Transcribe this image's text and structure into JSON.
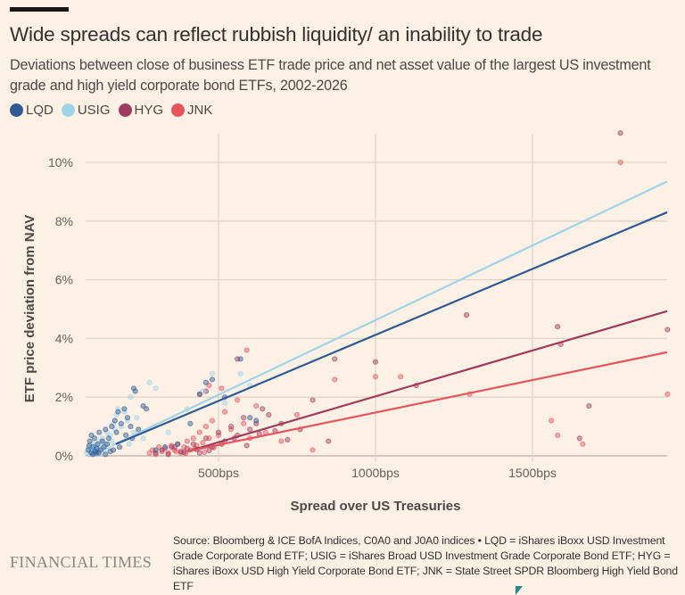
{
  "header": {
    "title": "Wide spreads can reflect rubbish liquidity/ an inability to trade",
    "subtitle": "Deviations between close of business ETF trade price and net asset value of the largest US investment grade and high yield corporate bond ETFs, 2002-2026"
  },
  "legend": [
    {
      "label": "LQD",
      "color": "#2e5b95"
    },
    {
      "label": "USIG",
      "color": "#9fd3e8"
    },
    {
      "label": "HYG",
      "color": "#a23a5e"
    },
    {
      "label": "JNK",
      "color": "#e5555e"
    }
  ],
  "footer": {
    "brand": "FINANCIAL TIMES",
    "source": "Source: Bloomberg & ICE BofA Indices, C0A0 and J0A0 indices • LQD = iShares iBoxx USD Investment Grade Corporate Bond ETF; USIG = iShares Broad USD Investment Grade Corporate Bond ETF; HYG = iShares iBoxx USD High Yield Corporate Bond ETF; JNK = State Street SPDR Bloomberg High Yield Bond ETF"
  },
  "chart_data": {
    "type": "scatter",
    "title": "Wide spreads can reflect rubbish liquidity/ an inability to trade",
    "xlabel": "Spread over US Treasuries",
    "ylabel": "ETF price deviation from NAV",
    "xlim": [
      77,
      1929
    ],
    "ylim": [
      0,
      10.5
    ],
    "x_ticks": [
      {
        "value": 500,
        "label": "500bps"
      },
      {
        "value": 1000,
        "label": "1000bps"
      },
      {
        "value": 1500,
        "label": "1500bps"
      }
    ],
    "y_ticks": [
      {
        "value": 0,
        "label": "0%"
      },
      {
        "value": 2,
        "label": "2%"
      },
      {
        "value": 4,
        "label": "4%"
      },
      {
        "value": 6,
        "label": "6%"
      },
      {
        "value": 8,
        "label": "8%"
      },
      {
        "value": 10,
        "label": "10%"
      }
    ],
    "grid": true,
    "legend_position": "top-left",
    "series": [
      {
        "name": "LQD",
        "color": "#2e5b95",
        "trend": [
          [
            173,
            0.4
          ],
          [
            1929,
            8.3
          ]
        ],
        "points": [
          [
            85,
            0.2
          ],
          [
            90,
            0.5
          ],
          [
            95,
            0.7
          ],
          [
            100,
            0.3
          ],
          [
            105,
            0.6
          ],
          [
            110,
            0.1
          ],
          [
            115,
            0.4
          ],
          [
            120,
            0.8
          ],
          [
            125,
            0.2
          ],
          [
            130,
            0.5
          ],
          [
            135,
            0.3
          ],
          [
            140,
            0.9
          ],
          [
            145,
            0.4
          ],
          [
            150,
            0.6
          ],
          [
            160,
            1.0
          ],
          [
            170,
            1.2
          ],
          [
            175,
            0.8
          ],
          [
            180,
            1.5
          ],
          [
            185,
            0.3
          ],
          [
            190,
            1.1
          ],
          [
            200,
            1.6
          ],
          [
            205,
            0.7
          ],
          [
            210,
            1.3
          ],
          [
            220,
            1.0
          ],
          [
            225,
            0.6
          ],
          [
            230,
            2.3
          ],
          [
            235,
            2.2
          ],
          [
            245,
            0.9
          ],
          [
            260,
            1.7
          ],
          [
            270,
            1.6
          ],
          [
            300,
            0.2
          ],
          [
            330,
            0.3
          ],
          [
            370,
            0.4
          ],
          [
            410,
            1.1
          ],
          [
            440,
            2.1
          ],
          [
            460,
            2.5
          ],
          [
            480,
            2.6
          ],
          [
            520,
            2.0
          ],
          [
            570,
            3.3
          ],
          [
            600,
            1.3
          ],
          [
            620,
            1.2
          ],
          [
            95,
            0.1
          ],
          [
            100,
            0.05
          ],
          [
            108,
            0.15
          ],
          [
            112,
            0.25
          ],
          [
            118,
            0.1
          ],
          [
            88,
            0.35
          ],
          [
            140,
            0.05
          ],
          [
            155,
            0.15
          ],
          [
            165,
            0.2
          ]
        ]
      },
      {
        "name": "USIG",
        "color": "#9fd3e8",
        "trend": [
          [
            160,
            0.35
          ],
          [
            1929,
            9.35
          ]
        ],
        "points": [
          [
            80,
            0.1
          ],
          [
            85,
            0.3
          ],
          [
            90,
            0.05
          ],
          [
            95,
            0.2
          ],
          [
            100,
            0.4
          ],
          [
            105,
            0.15
          ],
          [
            110,
            0.3
          ],
          [
            115,
            0.1
          ],
          [
            120,
            0.5
          ],
          [
            125,
            0.25
          ],
          [
            130,
            0.6
          ],
          [
            135,
            0.2
          ],
          [
            140,
            0.4
          ],
          [
            145,
            0.8
          ],
          [
            150,
            0.3
          ],
          [
            155,
            0.7
          ],
          [
            160,
            0.5
          ],
          [
            165,
            1.1
          ],
          [
            170,
            0.9
          ],
          [
            175,
            1.4
          ],
          [
            180,
            1.6
          ],
          [
            190,
            1.0
          ],
          [
            200,
            1.5
          ],
          [
            210,
            1.2
          ],
          [
            215,
            0.4
          ],
          [
            220,
            2.0
          ],
          [
            230,
            0.8
          ],
          [
            240,
            1.3
          ],
          [
            260,
            0.6
          ],
          [
            280,
            2.5
          ],
          [
            300,
            2.3
          ],
          [
            340,
            0.8
          ],
          [
            400,
            1.6
          ],
          [
            450,
            2.2
          ],
          [
            480,
            2.8
          ],
          [
            520,
            1.8
          ],
          [
            570,
            2.8
          ],
          [
            600,
            2.4
          ],
          [
            92,
            0.12
          ],
          [
            98,
            0.08
          ],
          [
            102,
            0.22
          ],
          [
            108,
            0.35
          ],
          [
            112,
            0.05
          ],
          [
            118,
            0.18
          ],
          [
            122,
            0.28
          ],
          [
            128,
            0.12
          ],
          [
            132,
            0.45
          ],
          [
            138,
            0.3
          ]
        ]
      },
      {
        "name": "HYG",
        "color": "#a23a5e",
        "trend": [
          [
            400,
            0.15
          ],
          [
            1929,
            4.93
          ]
        ],
        "points": [
          [
            300,
            0.1
          ],
          [
            320,
            0.2
          ],
          [
            340,
            0.05
          ],
          [
            360,
            0.3
          ],
          [
            380,
            0.15
          ],
          [
            400,
            0.25
          ],
          [
            420,
            0.4
          ],
          [
            440,
            0.1
          ],
          [
            460,
            0.6
          ],
          [
            480,
            0.3
          ],
          [
            500,
            0.8
          ],
          [
            520,
            0.5
          ],
          [
            540,
            1.0
          ],
          [
            560,
            0.7
          ],
          [
            580,
            1.3
          ],
          [
            600,
            0.9
          ],
          [
            620,
            1.1
          ],
          [
            640,
            1.6
          ],
          [
            660,
            1.4
          ],
          [
            700,
            1.1
          ],
          [
            760,
            0.9
          ],
          [
            800,
            1.9
          ],
          [
            850,
            0.5
          ],
          [
            870,
            3.3
          ],
          [
            1000,
            3.2
          ],
          [
            1130,
            2.4
          ],
          [
            1290,
            4.8
          ],
          [
            1580,
            4.4
          ],
          [
            1590,
            3.8
          ],
          [
            1650,
            0.6
          ],
          [
            1780,
            11.0
          ],
          [
            1930,
            4.3
          ],
          [
            1680,
            1.7
          ],
          [
            560,
            3.3
          ],
          [
            460,
            2.2
          ],
          [
            350,
            0.3
          ],
          [
            390,
            0.12
          ],
          [
            430,
            0.22
          ],
          [
            470,
            0.18
          ],
          [
            510,
            0.4
          ],
          [
            550,
            0.6
          ],
          [
            590,
            0.35
          ],
          [
            630,
            0.75
          ],
          [
            680,
            0.85
          ],
          [
            720,
            0.55
          ]
        ]
      },
      {
        "name": "JNK",
        "color": "#e5555e",
        "trend": [
          [
            400,
            0.15
          ],
          [
            1929,
            3.53
          ]
        ],
        "points": [
          [
            280,
            0.1
          ],
          [
            290,
            0.2
          ],
          [
            300,
            0.05
          ],
          [
            310,
            0.3
          ],
          [
            320,
            0.15
          ],
          [
            330,
            0.25
          ],
          [
            340,
            0.1
          ],
          [
            350,
            0.35
          ],
          [
            360,
            0.2
          ],
          [
            370,
            0.4
          ],
          [
            380,
            0.1
          ],
          [
            390,
            0.3
          ],
          [
            400,
            0.5
          ],
          [
            410,
            0.2
          ],
          [
            420,
            0.6
          ],
          [
            430,
            0.35
          ],
          [
            440,
            0.8
          ],
          [
            450,
            0.45
          ],
          [
            460,
            1.0
          ],
          [
            470,
            0.6
          ],
          [
            480,
            1.2
          ],
          [
            500,
            0.7
          ],
          [
            520,
            1.5
          ],
          [
            540,
            0.9
          ],
          [
            560,
            1.9
          ],
          [
            580,
            1.1
          ],
          [
            600,
            0.6
          ],
          [
            620,
            1.7
          ],
          [
            650,
            0.8
          ],
          [
            700,
            0.5
          ],
          [
            750,
            1.4
          ],
          [
            800,
            0.2
          ],
          [
            870,
            2.6
          ],
          [
            1000,
            2.7
          ],
          [
            1080,
            2.7
          ],
          [
            1300,
            2.1
          ],
          [
            1560,
            1.2
          ],
          [
            1580,
            0.7
          ],
          [
            1660,
            0.4
          ],
          [
            1780,
            10.0
          ],
          [
            1930,
            2.1
          ],
          [
            590,
            3.6
          ],
          [
            440,
            2.1
          ],
          [
            470,
            2.4
          ],
          [
            510,
            2.3
          ],
          [
            365,
            0.15
          ],
          [
            395,
            0.08
          ],
          [
            425,
            0.25
          ],
          [
            455,
            0.12
          ],
          [
            485,
            0.28
          ]
        ]
      }
    ]
  }
}
